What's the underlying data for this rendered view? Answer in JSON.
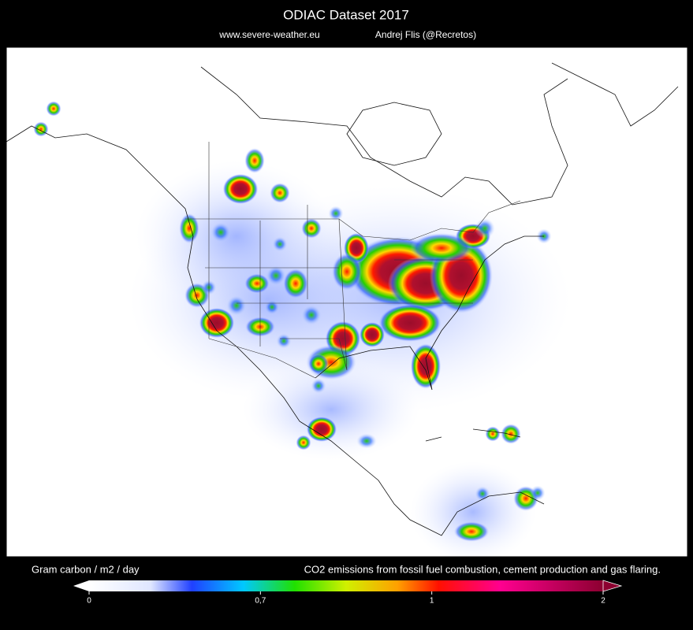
{
  "header": {
    "title": "ODIAC Dataset  2017",
    "website": "www.severe-weather.eu",
    "author": "Andrej Flis (@Recretos)"
  },
  "colorbar": {
    "label": "Gram carbon / m2 / day",
    "description": "CO2 emissions from fossil fuel combustion, cement production and gas flaring.",
    "ticks": [
      0,
      {
        "value": 0.7,
        "label": "0,7"
      },
      1,
      2
    ]
  }
}
